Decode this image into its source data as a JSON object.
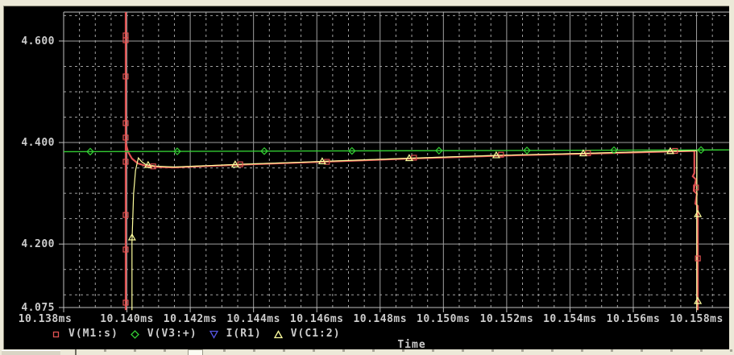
{
  "colors": {
    "background": "#000000",
    "frame": "#ECE9D8",
    "grid": "#A0A0A0",
    "axis_border": "#C0C0C0",
    "text": "#CCCCCC",
    "red": "#E05252",
    "green": "#33CC33",
    "yellow": "#FFFF9E",
    "blue": "#5555E0"
  },
  "chart_data": {
    "type": "line",
    "title": "",
    "xlabel": "Time",
    "x_unit": "ms",
    "y_unit": "V",
    "grid": true,
    "legend_position": "bottom",
    "x_range_ms": [
      10.138,
      10.15903
    ],
    "y_range_v": [
      4.075,
      4.657
    ],
    "x_minor_step_ms": 0.0005,
    "y_minor_step_v": 0.05,
    "x_major_ticks": [
      {
        "t": 10.138,
        "label": "10.138ms"
      },
      {
        "t": 10.14,
        "label": "10.140ms"
      },
      {
        "t": 10.142,
        "label": "10.142ms"
      },
      {
        "t": 10.144,
        "label": "10.144ms"
      },
      {
        "t": 10.146,
        "label": "10.146ms"
      },
      {
        "t": 10.148,
        "label": "10.148ms"
      },
      {
        "t": 10.15,
        "label": "10.150ms"
      },
      {
        "t": 10.152,
        "label": "10.152ms"
      },
      {
        "t": 10.154,
        "label": "10.154ms"
      },
      {
        "t": 10.156,
        "label": "10.156ms"
      },
      {
        "t": 10.158,
        "label": "10.158ms"
      }
    ],
    "y_major_ticks": [
      {
        "v": 4.6,
        "label": "4.600"
      },
      {
        "v": 4.4,
        "label": "4.400"
      },
      {
        "v": 4.2,
        "label": "4.200"
      },
      {
        "v": 4.075,
        "label": "4.075"
      }
    ],
    "series": [
      {
        "name": "V(M1:s)",
        "color_key": "red",
        "marker": "square",
        "width": 2.2,
        "points": [
          [
            10.13996,
            4.657
          ],
          [
            10.13996,
            4.07
          ],
          [
            10.13996,
            4.399
          ],
          [
            10.14004,
            4.381
          ],
          [
            10.14016,
            4.3684
          ],
          [
            10.14034,
            4.359
          ],
          [
            10.1406,
            4.354
          ],
          [
            10.14098,
            4.3518
          ],
          [
            10.14149,
            4.351
          ],
          [
            10.14365,
            4.3565
          ],
          [
            10.1462,
            4.3621
          ],
          [
            10.14895,
            4.3684
          ],
          [
            10.1517,
            4.374
          ],
          [
            10.15442,
            4.3779
          ],
          [
            10.15638,
            4.3811
          ],
          [
            10.15786,
            4.3835
          ],
          [
            10.15793,
            4.3835
          ],
          [
            10.15793,
            4.3399
          ],
          [
            10.15788,
            4.3335
          ],
          [
            10.15798,
            4.3272
          ],
          [
            10.15791,
            4.305
          ],
          [
            10.15801,
            4.2987
          ],
          [
            10.15796,
            4.2796
          ],
          [
            10.15804,
            4.2749
          ],
          [
            10.15804,
            4.07
          ]
        ],
        "marker_points": [
          [
            10.13996,
            4.611
          ],
          [
            10.13996,
            4.6016
          ],
          [
            10.13996,
            4.5302
          ],
          [
            10.13996,
            4.4382
          ],
          [
            10.13996,
            4.4097
          ],
          [
            10.13996,
            4.3621
          ],
          [
            10.13996,
            4.2574
          ],
          [
            10.13996,
            4.1892
          ],
          [
            10.13996,
            4.0845
          ],
          [
            10.14083,
            4.353
          ],
          [
            10.14358,
            4.357
          ],
          [
            10.14632,
            4.362
          ],
          [
            10.14907,
            4.37
          ],
          [
            10.15182,
            4.376
          ],
          [
            10.15457,
            4.379
          ],
          [
            10.15732,
            4.3835
          ],
          [
            10.15798,
            4.3113
          ],
          [
            10.15804,
            4.1717
          ]
        ]
      },
      {
        "name": "V(V3:+)",
        "color_key": "green",
        "marker": "diamond",
        "width": 1.4,
        "points": [
          [
            10.138,
            4.382
          ],
          [
            10.15903,
            4.3855
          ]
        ],
        "marker_points": [
          [
            10.13884,
            4.3821
          ],
          [
            10.14159,
            4.3826
          ],
          [
            10.14434,
            4.3831
          ],
          [
            10.14711,
            4.3835
          ],
          [
            10.14986,
            4.384
          ],
          [
            10.15264,
            4.3844
          ],
          [
            10.15539,
            4.3849
          ],
          [
            10.15814,
            4.3853
          ]
        ]
      },
      {
        "name": "I(R1)",
        "color_key": "blue",
        "marker": "triangle-down",
        "width": 1.2,
        "points": [],
        "marker_points": [],
        "note": "trace off-scale; only legend entry visible"
      },
      {
        "name": "V(C1:2)",
        "color_key": "yellow",
        "marker": "triangle-up",
        "width": 1.2,
        "points": [
          [
            10.14016,
            4.07
          ],
          [
            10.14016,
            4.2035
          ],
          [
            10.14021,
            4.2986
          ],
          [
            10.14027,
            4.345
          ],
          [
            10.14036,
            4.3696
          ],
          [
            10.14047,
            4.362
          ],
          [
            10.1406,
            4.3565
          ],
          [
            10.1409,
            4.3534
          ],
          [
            10.14149,
            4.3518
          ],
          [
            10.14365,
            4.3573
          ],
          [
            10.1462,
            4.3629
          ],
          [
            10.14895,
            4.3692
          ],
          [
            10.1517,
            4.3748
          ],
          [
            10.15442,
            4.3787
          ],
          [
            10.15638,
            4.3819
          ],
          [
            10.15786,
            4.3838
          ],
          [
            10.15801,
            4.3838
          ],
          [
            10.15801,
            4.07
          ]
        ],
        "marker_points": [
          [
            10.14016,
            4.213
          ],
          [
            10.14067,
            4.3557
          ],
          [
            10.14342,
            4.3568
          ],
          [
            10.14617,
            4.3629
          ],
          [
            10.14892,
            4.3692
          ],
          [
            10.15167,
            4.3748
          ],
          [
            10.15442,
            4.3787
          ],
          [
            10.15717,
            4.383
          ],
          [
            10.15804,
            4.259
          ],
          [
            10.15804,
            4.0877
          ]
        ]
      }
    ]
  }
}
